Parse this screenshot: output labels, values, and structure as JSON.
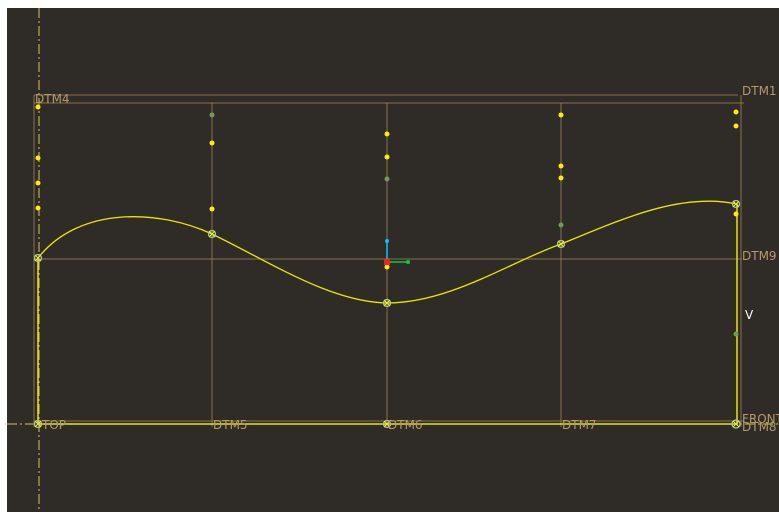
{
  "viewport": {
    "background": "#2f2c27",
    "colors": {
      "datum": "#8a7150",
      "datum_label": "#b59a6a",
      "sketch": "#e9e600",
      "point": "#ffee00",
      "point_green": "#6f9d54",
      "vertex": "#9ec7c0",
      "axis_y": "#00c8ff",
      "axis_x": "#00d040",
      "origin": "#ff1a1a",
      "centerline": "#d6c84a"
    }
  },
  "datum_planes": {
    "dtm1": "DTM1",
    "dtm4": "DTM4",
    "dtm5": "DTM5",
    "dtm6": "DTM6",
    "dtm7": "DTM7",
    "dtm8": "DTM8",
    "dtm9": "DTM9",
    "top": "TOP",
    "front": "FRONT"
  },
  "dimension": {
    "v_label": "V"
  },
  "icons": {
    "csys": "coordinate-system-icon",
    "vertex": "vertex-marker-icon"
  }
}
